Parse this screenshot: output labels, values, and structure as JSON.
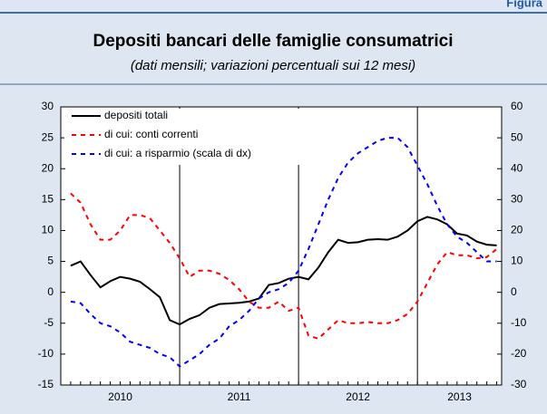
{
  "figure_label": "Figura",
  "chart_data": {
    "type": "line",
    "title": "Depositi bancari delle famiglie consumatrici",
    "subtitle": "(dati mensili; variazioni percentuali sui 12 mesi)",
    "categories": [
      null,
      null,
      null,
      null,
      null,
      null,
      null,
      null,
      null,
      null,
      null,
      null,
      null,
      null,
      null,
      null,
      null,
      null,
      null,
      null,
      null,
      null,
      null,
      null,
      null,
      null,
      null,
      null,
      null,
      null,
      null,
      null,
      null,
      null,
      null,
      null,
      null,
      null,
      null,
      null,
      null,
      null,
      null,
      null
    ],
    "year_labels": [
      "2010",
      "2011",
      "2012",
      "2013"
    ],
    "ylim": [
      -15,
      30
    ],
    "yticks": [
      -15,
      -10,
      -5,
      0,
      5,
      10,
      15,
      20,
      25,
      30
    ],
    "y2lim": [
      -30,
      60
    ],
    "y2ticks": [
      -30,
      -20,
      -10,
      0,
      10,
      20,
      30,
      40,
      50,
      60
    ],
    "legend": "top-left",
    "series": [
      {
        "name": "depositi totali",
        "color": "#000000",
        "dash": "solid",
        "values": [
          4.3,
          5,
          2.8,
          0.8,
          1.8,
          2.5,
          2.2,
          1.7,
          0.5,
          -0.8,
          -4.5,
          -5.2,
          -4.3,
          -3.7,
          -2.5,
          -1.9,
          -1.8,
          -1.7,
          -1.5,
          -1,
          1.2,
          1.5,
          2.2,
          2.5,
          2.1,
          4,
          6.5,
          8.5,
          8,
          8.1,
          8.5,
          8.6,
          8.5,
          9,
          10,
          11.5,
          12.2,
          11.8,
          11,
          9.5,
          9.2,
          8.2,
          7.7,
          7.6
        ]
      },
      {
        "name": "di cui: conti correnti",
        "color": "#ff0000",
        "dash": "dashed",
        "values": [
          16,
          14.5,
          11,
          8.5,
          8.5,
          10,
          12.5,
          12.5,
          12,
          10,
          8,
          5.5,
          2.5,
          3.5,
          3.5,
          3,
          2,
          0.5,
          -1.5,
          -2.5,
          -2.5,
          -1.5,
          -3,
          -2.5,
          -7,
          -7.5,
          -6,
          -4.5,
          -5,
          -5,
          -4.8,
          -5,
          -5,
          -4.5,
          -3.5,
          -1.5,
          1.5,
          4.5,
          6.5,
          6,
          6,
          5.5,
          5.7,
          7
        ]
      },
      {
        "name": "di cui: a risparmio (scala di dx)",
        "color": "#0000ff",
        "dash": "dashed",
        "axis": "y2",
        "values": [
          -3,
          -3.5,
          -7,
          -10,
          -11,
          -13,
          -16,
          -17,
          -18,
          -20,
          -21,
          -24,
          -22,
          -20,
          -17,
          -15,
          -11,
          -9,
          -6,
          -2,
          0,
          1,
          3,
          7,
          14,
          22,
          30,
          37,
          42,
          45,
          47,
          49,
          50,
          50,
          47,
          41,
          35,
          28,
          22,
          18,
          16,
          13,
          10,
          10
        ]
      }
    ]
  }
}
